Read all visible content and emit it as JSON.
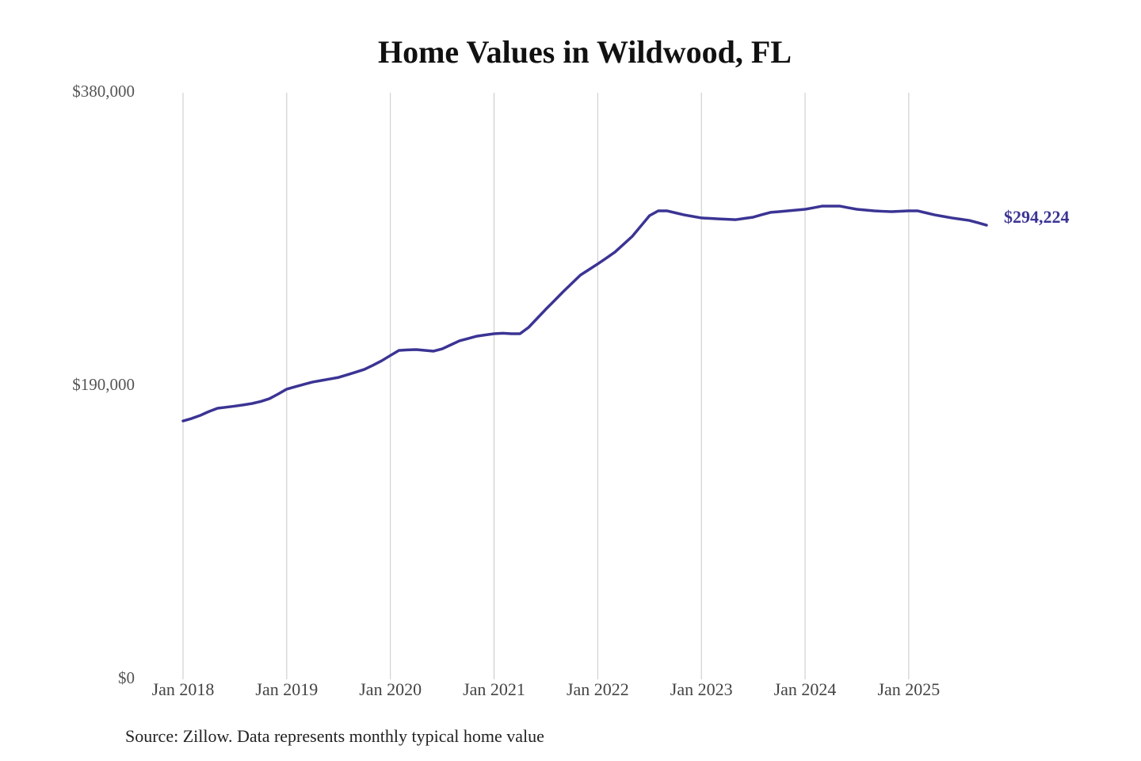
{
  "chart_data": {
    "type": "line",
    "title": "Home Values in Wildwood, FL",
    "source": "Source: Zillow. Data represents monthly typical home value",
    "categories": [
      "Jan 2018",
      null,
      null,
      null,
      null,
      null,
      null,
      null,
      null,
      null,
      null,
      null,
      "Jan 2019",
      null,
      null,
      null,
      null,
      null,
      null,
      null,
      null,
      null,
      null,
      null,
      "Jan 2020",
      null,
      null,
      null,
      null,
      null,
      null,
      null,
      null,
      null,
      null,
      null,
      "Jan 2021",
      null,
      null,
      null,
      null,
      null,
      null,
      null,
      null,
      null,
      null,
      null,
      "Jan 2022",
      null,
      null,
      null,
      null,
      null,
      null,
      null,
      null,
      null,
      null,
      null,
      "Jan 2023",
      null,
      null,
      null,
      null,
      null,
      null,
      null,
      null,
      null,
      null,
      null,
      "Jan 2024",
      null,
      null,
      null,
      null,
      null,
      null,
      null,
      null,
      null,
      null,
      null,
      "Jan 2025",
      null,
      null,
      null,
      null,
      null,
      null,
      null,
      null,
      null
    ],
    "series": [
      {
        "name": "Wildwood, FL",
        "color": "#3b3494",
        "values": [
          167400,
          169000,
          171000,
          173500,
          175600,
          176300,
          177000,
          177800,
          178700,
          180000,
          181800,
          184800,
          188000,
          189600,
          191100,
          192600,
          193600,
          194600,
          195600,
          197300,
          199000,
          200800,
          203500,
          206400,
          209800,
          213100,
          213400,
          213600,
          213100,
          212600,
          214100,
          216700,
          219300,
          220800,
          222300,
          223100,
          223900,
          224200,
          223900,
          223900,
          228000,
          233900,
          239800,
          245400,
          251100,
          256500,
          261900,
          265500,
          269100,
          272900,
          276800,
          281900,
          287000,
          293700,
          300400,
          303500,
          303500,
          302200,
          300900,
          299900,
          298900,
          298600,
          298300,
          298000,
          297800,
          298600,
          299400,
          301000,
          302500,
          303000,
          303500,
          304000,
          304500,
          305500,
          306600,
          306600,
          306600,
          305500,
          304500,
          304000,
          303500,
          303200,
          303000,
          303200,
          303500,
          303500,
          302200,
          300900,
          299900,
          298900,
          298100,
          297300,
          295800,
          294224
        ],
        "value_labels": [
          null,
          null,
          null,
          null,
          null,
          null,
          null,
          null,
          null,
          null,
          null,
          null,
          null,
          null,
          null,
          null,
          null,
          null,
          null,
          null,
          null,
          null,
          null,
          null,
          null,
          null,
          null,
          null,
          null,
          null,
          null,
          null,
          null,
          null,
          null,
          null,
          null,
          null,
          null,
          null,
          null,
          null,
          null,
          null,
          null,
          null,
          null,
          null,
          null,
          null,
          null,
          null,
          null,
          null,
          null,
          null,
          null,
          null,
          null,
          null,
          null,
          null,
          null,
          null,
          null,
          null,
          null,
          null,
          null,
          null,
          null,
          null,
          null,
          null,
          null,
          null,
          null,
          null,
          null,
          null,
          null,
          null,
          null,
          null,
          null,
          null,
          null,
          null,
          null,
          null,
          null,
          null,
          null,
          "$294,224"
        ]
      }
    ],
    "ylim": [
      0,
      380000
    ],
    "yticks": [
      {
        "value": 0,
        "label": "$0"
      },
      {
        "value": 190000,
        "label": "$190,000"
      },
      {
        "value": 380000,
        "label": "$380,000"
      }
    ],
    "grid": "x"
  }
}
